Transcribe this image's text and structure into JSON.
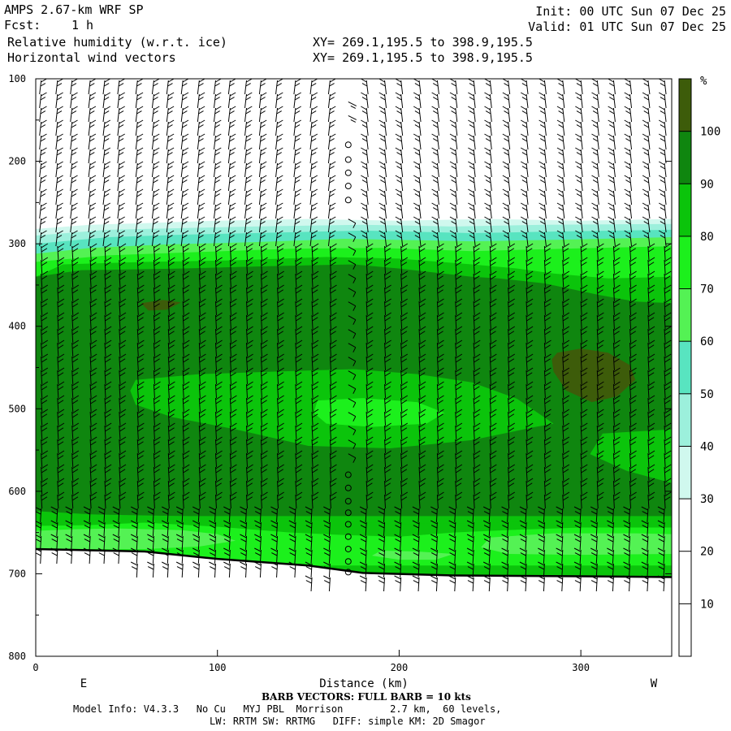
{
  "header": {
    "model": "AMPS 2.67-km WRF SP",
    "fcst_label": "Fcst:",
    "fcst_value": "1 h",
    "field1": "Relative humidity (w.r.t. ice)",
    "field2": "Horizontal wind vectors",
    "xy1": "XY= 269.1,195.5 to 398.9,195.5",
    "xy2": "XY= 269.1,195.5 to 398.9,195.5",
    "init": "Init: 00 UTC Sun 07 Dec 25",
    "valid": "Valid: 01 UTC Sun 07 Dec 25"
  },
  "chart_data": {
    "type": "heatmap",
    "title": "Relative humidity (w.r.t. ice)",
    "xlabel": "Distance (km)",
    "ylabel": "",
    "xlim": [
      0,
      350
    ],
    "ylim": [
      800,
      100
    ],
    "x_ticks": [
      0,
      100,
      200,
      300
    ],
    "y_ticks": [
      100,
      200,
      300,
      400,
      500,
      600,
      700,
      800
    ],
    "x_tick_labels": [
      "0",
      "100",
      "200",
      "300"
    ],
    "y_tick_labels": [
      "100",
      "200",
      "300",
      "400",
      "500",
      "600",
      "700",
      "800"
    ],
    "left_end_label": "E",
    "right_end_label": "W",
    "colorbar": {
      "unit": "%",
      "levels": [
        10,
        20,
        30,
        40,
        50,
        60,
        70,
        80,
        90,
        100
      ],
      "level_labels": [
        "10",
        "20",
        "30",
        "40",
        "50",
        "60",
        "70",
        "80",
        "90",
        "100"
      ],
      "colors": [
        "#ffffff",
        "#ffffff",
        "#ffffff",
        "#d0f8ee",
        "#9cf0dc",
        "#58e4c0",
        "#54f254",
        "#1cf01c",
        "#0bc40b",
        "#0f860f",
        "#3d5c0a"
      ]
    },
    "regions": [
      {
        "rh": 30,
        "points": [
          [
            0,
            282
          ],
          [
            30,
            277
          ],
          [
            60,
            275
          ],
          [
            100,
            272
          ],
          [
            150,
            270
          ],
          [
            200,
            272
          ],
          [
            250,
            270
          ],
          [
            300,
            272
          ],
          [
            350,
            270
          ],
          [
            350,
            800
          ],
          [
            0,
            800
          ]
        ]
      },
      {
        "rh": 40,
        "points": [
          [
            0,
            290
          ],
          [
            40,
            283
          ],
          [
            80,
            281
          ],
          [
            120,
            279
          ],
          [
            180,
            277
          ],
          [
            230,
            279
          ],
          [
            280,
            277
          ],
          [
            350,
            276
          ],
          [
            350,
            800
          ],
          [
            0,
            800
          ]
        ]
      },
      {
        "rh": 50,
        "points": [
          [
            0,
            300
          ],
          [
            40,
            292
          ],
          [
            80,
            289
          ],
          [
            120,
            287
          ],
          [
            180,
            284
          ],
          [
            240,
            287
          ],
          [
            290,
            285
          ],
          [
            350,
            283
          ],
          [
            350,
            800
          ],
          [
            0,
            800
          ]
        ]
      },
      {
        "rh": 60,
        "points": [
          [
            0,
            312
          ],
          [
            30,
            305
          ],
          [
            70,
            301
          ],
          [
            120,
            298
          ],
          [
            170,
            294
          ],
          [
            240,
            297
          ],
          [
            290,
            295
          ],
          [
            350,
            292
          ],
          [
            350,
            800
          ],
          [
            0,
            800
          ]
        ]
      },
      {
        "rh": 70,
        "points": [
          [
            0,
            322
          ],
          [
            40,
            314
          ],
          [
            90,
            310
          ],
          [
            140,
            306
          ],
          [
            190,
            305
          ],
          [
            240,
            309
          ],
          [
            290,
            306
          ],
          [
            350,
            303
          ],
          [
            350,
            800
          ],
          [
            0,
            800
          ]
        ]
      },
      {
        "rh": 80,
        "points": [
          [
            0,
            340
          ],
          [
            15,
            325
          ],
          [
            60,
            322
          ],
          [
            110,
            320
          ],
          [
            160,
            316
          ],
          [
            200,
            318
          ],
          [
            240,
            325
          ],
          [
            265,
            330
          ],
          [
            285,
            336
          ],
          [
            315,
            342
          ],
          [
            350,
            340
          ],
          [
            350,
            800
          ],
          [
            0,
            800
          ]
        ]
      },
      {
        "rh": 90,
        "points": [
          [
            0,
            340
          ],
          [
            25,
            332
          ],
          [
            80,
            330
          ],
          [
            130,
            327
          ],
          [
            175,
            325
          ],
          [
            200,
            330
          ],
          [
            240,
            340
          ],
          [
            255,
            342
          ],
          [
            280,
            348
          ],
          [
            310,
            362
          ],
          [
            330,
            370
          ],
          [
            350,
            372
          ],
          [
            350,
            630
          ],
          [
            0,
            630
          ]
        ]
      },
      {
        "rh": 80,
        "points": [
          [
            55,
            465
          ],
          [
            90,
            458
          ],
          [
            130,
            455
          ],
          [
            175,
            452
          ],
          [
            210,
            458
          ],
          [
            240,
            468
          ],
          [
            265,
            488
          ],
          [
            285,
            518
          ],
          [
            275,
            522
          ],
          [
            240,
            538
          ],
          [
            195,
            548
          ],
          [
            150,
            545
          ],
          [
            110,
            525
          ],
          [
            75,
            510
          ],
          [
            55,
            495
          ],
          [
            52,
            478
          ]
        ]
      },
      {
        "rh": 70,
        "points": [
          [
            155,
            490
          ],
          [
            180,
            487
          ],
          [
            210,
            492
          ],
          [
            225,
            505
          ],
          [
            215,
            518
          ],
          [
            185,
            522
          ],
          [
            160,
            518
          ],
          [
            153,
            505
          ]
        ]
      },
      {
        "rh": 80,
        "points": [
          [
            312,
            530
          ],
          [
            350,
            525
          ],
          [
            350,
            590
          ],
          [
            325,
            575
          ],
          [
            305,
            555
          ]
        ]
      },
      {
        "rh": 100,
        "points": [
          [
            58,
            372
          ],
          [
            70,
            368
          ],
          [
            80,
            371
          ],
          [
            72,
            380
          ],
          [
            62,
            381
          ]
        ]
      },
      {
        "rh": 100,
        "points": [
          [
            287,
            432
          ],
          [
            300,
            427
          ],
          [
            315,
            432
          ],
          [
            327,
            447
          ],
          [
            330,
            465
          ],
          [
            320,
            485
          ],
          [
            306,
            492
          ],
          [
            292,
            478
          ],
          [
            285,
            455
          ],
          [
            284,
            440
          ]
        ]
      },
      {
        "rh": 80,
        "points": [
          [
            0,
            624
          ],
          [
            30,
            628
          ],
          [
            80,
            630
          ],
          [
            120,
            631
          ],
          [
            150,
            635
          ],
          [
            175,
            637
          ],
          [
            200,
            640
          ],
          [
            250,
            638
          ],
          [
            300,
            634
          ],
          [
            350,
            630
          ],
          [
            350,
            700
          ],
          [
            0,
            700
          ]
        ]
      },
      {
        "rh": 70,
        "points": [
          [
            0,
            642
          ],
          [
            30,
            641
          ],
          [
            60,
            638
          ],
          [
            100,
            643
          ],
          [
            140,
            650
          ],
          [
            170,
            653
          ],
          [
            200,
            655
          ],
          [
            230,
            650
          ],
          [
            260,
            647
          ],
          [
            300,
            644
          ],
          [
            350,
            644
          ],
          [
            350,
            690
          ],
          [
            0,
            690
          ]
        ]
      },
      {
        "rh": 60,
        "points": [
          [
            0,
            648
          ],
          [
            20,
            646
          ],
          [
            45,
            645
          ],
          [
            80,
            647
          ],
          [
            100,
            652
          ],
          [
            110,
            660
          ],
          [
            90,
            667
          ],
          [
            60,
            670
          ],
          [
            30,
            670
          ],
          [
            0,
            669
          ]
        ]
      },
      {
        "rh": 60,
        "points": [
          [
            190,
            672
          ],
          [
            210,
            673
          ],
          [
            230,
            676
          ],
          [
            220,
            683
          ],
          [
            200,
            683
          ],
          [
            185,
            678
          ]
        ]
      },
      {
        "rh": 60,
        "points": [
          [
            250,
            656
          ],
          [
            285,
            651
          ],
          [
            330,
            651
          ],
          [
            350,
            652
          ],
          [
            350,
            676
          ],
          [
            300,
            677
          ],
          [
            260,
            676
          ],
          [
            245,
            668
          ]
        ]
      }
    ],
    "terrain": [
      [
        0,
        670
      ],
      [
        60,
        673
      ],
      [
        100,
        682
      ],
      [
        150,
        690
      ],
      [
        180,
        699
      ],
      [
        230,
        702
      ],
      [
        300,
        703
      ],
      [
        350,
        704
      ]
    ],
    "barb_columns": [
      [
        3,
        220
      ],
      [
        12,
        220
      ],
      [
        20,
        220
      ],
      [
        30,
        220
      ],
      [
        38,
        220
      ],
      [
        46,
        220
      ],
      [
        56,
        220
      ],
      [
        65,
        220
      ],
      [
        73,
        220
      ],
      [
        81,
        220
      ],
      [
        90,
        220
      ],
      [
        99,
        220
      ],
      [
        107,
        220
      ],
      [
        116,
        220
      ],
      [
        124,
        220
      ],
      [
        133,
        220
      ],
      [
        143,
        220
      ],
      [
        152,
        220
      ],
      [
        162,
        220
      ],
      [
        172,
        35
      ],
      [
        182,
        220
      ],
      [
        192,
        220
      ],
      [
        201,
        220
      ],
      [
        211,
        220
      ],
      [
        221,
        220
      ],
      [
        231,
        220
      ],
      [
        241,
        220
      ],
      [
        250,
        220
      ],
      [
        260,
        220
      ],
      [
        270,
        220
      ],
      [
        280,
        220
      ],
      [
        290,
        220
      ],
      [
        300,
        220
      ],
      [
        309,
        220
      ],
      [
        318,
        220
      ],
      [
        327,
        220
      ],
      [
        337,
        220
      ],
      [
        346,
        220
      ]
    ],
    "calm_circles": [
      [
        172,
        180
      ],
      [
        172,
        198
      ],
      [
        172,
        214
      ],
      [
        172,
        230
      ],
      [
        172,
        247
      ],
      [
        172,
        580
      ],
      [
        172,
        596
      ],
      [
        172,
        612
      ],
      [
        172,
        626
      ],
      [
        172,
        640
      ],
      [
        172,
        655
      ],
      [
        172,
        670
      ],
      [
        172,
        685
      ],
      [
        172,
        698
      ]
    ]
  },
  "footer": {
    "barb_note": "BARB VECTORS: FULL BARB = 10 kts",
    "model_info": "Model Info: V4.3.3   No Cu   MYJ PBL  Morrison        2.7 km,  60 levels,",
    "physics": "LW: RRTM SW: RRTMG   DIFF: simple KM: 2D Smagor"
  }
}
